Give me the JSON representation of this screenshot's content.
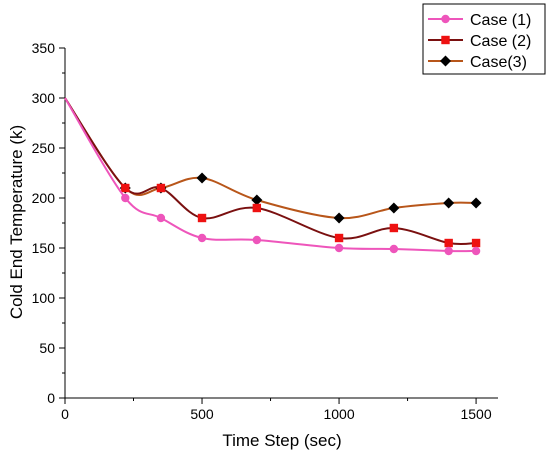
{
  "chart_data": {
    "type": "line",
    "xlabel": "Time Step (sec)",
    "ylabel": "Cold End Temperature (k)",
    "xlim": [
      0,
      1580
    ],
    "ylim": [
      0,
      350
    ],
    "xticks": [
      0,
      500,
      1000,
      1500
    ],
    "yticks": [
      0,
      50,
      100,
      150,
      200,
      250,
      300,
      350
    ],
    "legend_position": "top-right",
    "smooth": true,
    "series": [
      {
        "name": "Case (1)",
        "color": "#ee55bb",
        "marker": "circle",
        "x": [
          0,
          220,
          350,
          500,
          700,
          1000,
          1200,
          1400,
          1500
        ],
        "y": [
          300,
          200,
          180,
          160,
          158,
          150,
          149,
          147,
          147
        ]
      },
      {
        "name": "Case (2)",
        "color": "#7a1010",
        "marker_color": "#ee1111",
        "marker": "square",
        "x": [
          0,
          220,
          350,
          500,
          700,
          1000,
          1200,
          1400,
          1500
        ],
        "y": [
          300,
          210,
          210,
          180,
          190,
          160,
          170,
          155,
          155
        ]
      },
      {
        "name": "Case(3)",
        "color": "#b8561a",
        "marker_color": "#000000",
        "marker": "diamond",
        "x": [
          0,
          220,
          350,
          500,
          700,
          1000,
          1200,
          1400,
          1500
        ],
        "y": [
          300,
          210,
          210,
          220,
          198,
          180,
          190,
          195,
          195
        ]
      }
    ]
  }
}
